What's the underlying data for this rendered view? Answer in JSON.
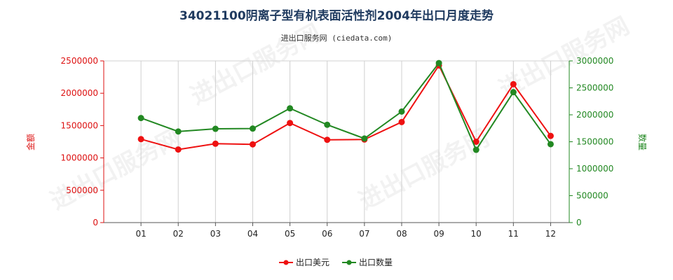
{
  "chart_data": {
    "type": "line",
    "title": "34021100阴离子型有机表面活性剂2004年出口月度走势",
    "subtitle": "进出口服务网 (ciedata.com)",
    "watermark": "进出口服务网",
    "categories": [
      "01",
      "02",
      "03",
      "04",
      "05",
      "06",
      "07",
      "08",
      "09",
      "10",
      "11",
      "12"
    ],
    "ylabel_left": "金额",
    "ylabel_right": "数量",
    "ylim_left": [
      0,
      2500000
    ],
    "ylim_right": [
      0,
      3000000
    ],
    "yticks_left": [
      "0",
      "500000",
      "1000000",
      "1500000",
      "2000000",
      "2500000"
    ],
    "yticks_right": [
      "0",
      "500000",
      "1000000",
      "1500000",
      "2000000",
      "2500000",
      "3000000"
    ],
    "grid": "vertical",
    "legend_position": "bottom-center",
    "series": [
      {
        "name": "出口美元",
        "axis": "left",
        "color": "#ee1111",
        "values": [
          1290000,
          1130000,
          1220000,
          1210000,
          1540000,
          1280000,
          1285000,
          1555000,
          2430000,
          1250000,
          2140000,
          1340000
        ]
      },
      {
        "name": "出口数量",
        "axis": "right",
        "color": "#228822",
        "values": [
          1940000,
          1690000,
          1740000,
          1745000,
          2120000,
          1815000,
          1560000,
          2060000,
          2960000,
          1350000,
          2420000,
          1455000
        ]
      }
    ]
  }
}
